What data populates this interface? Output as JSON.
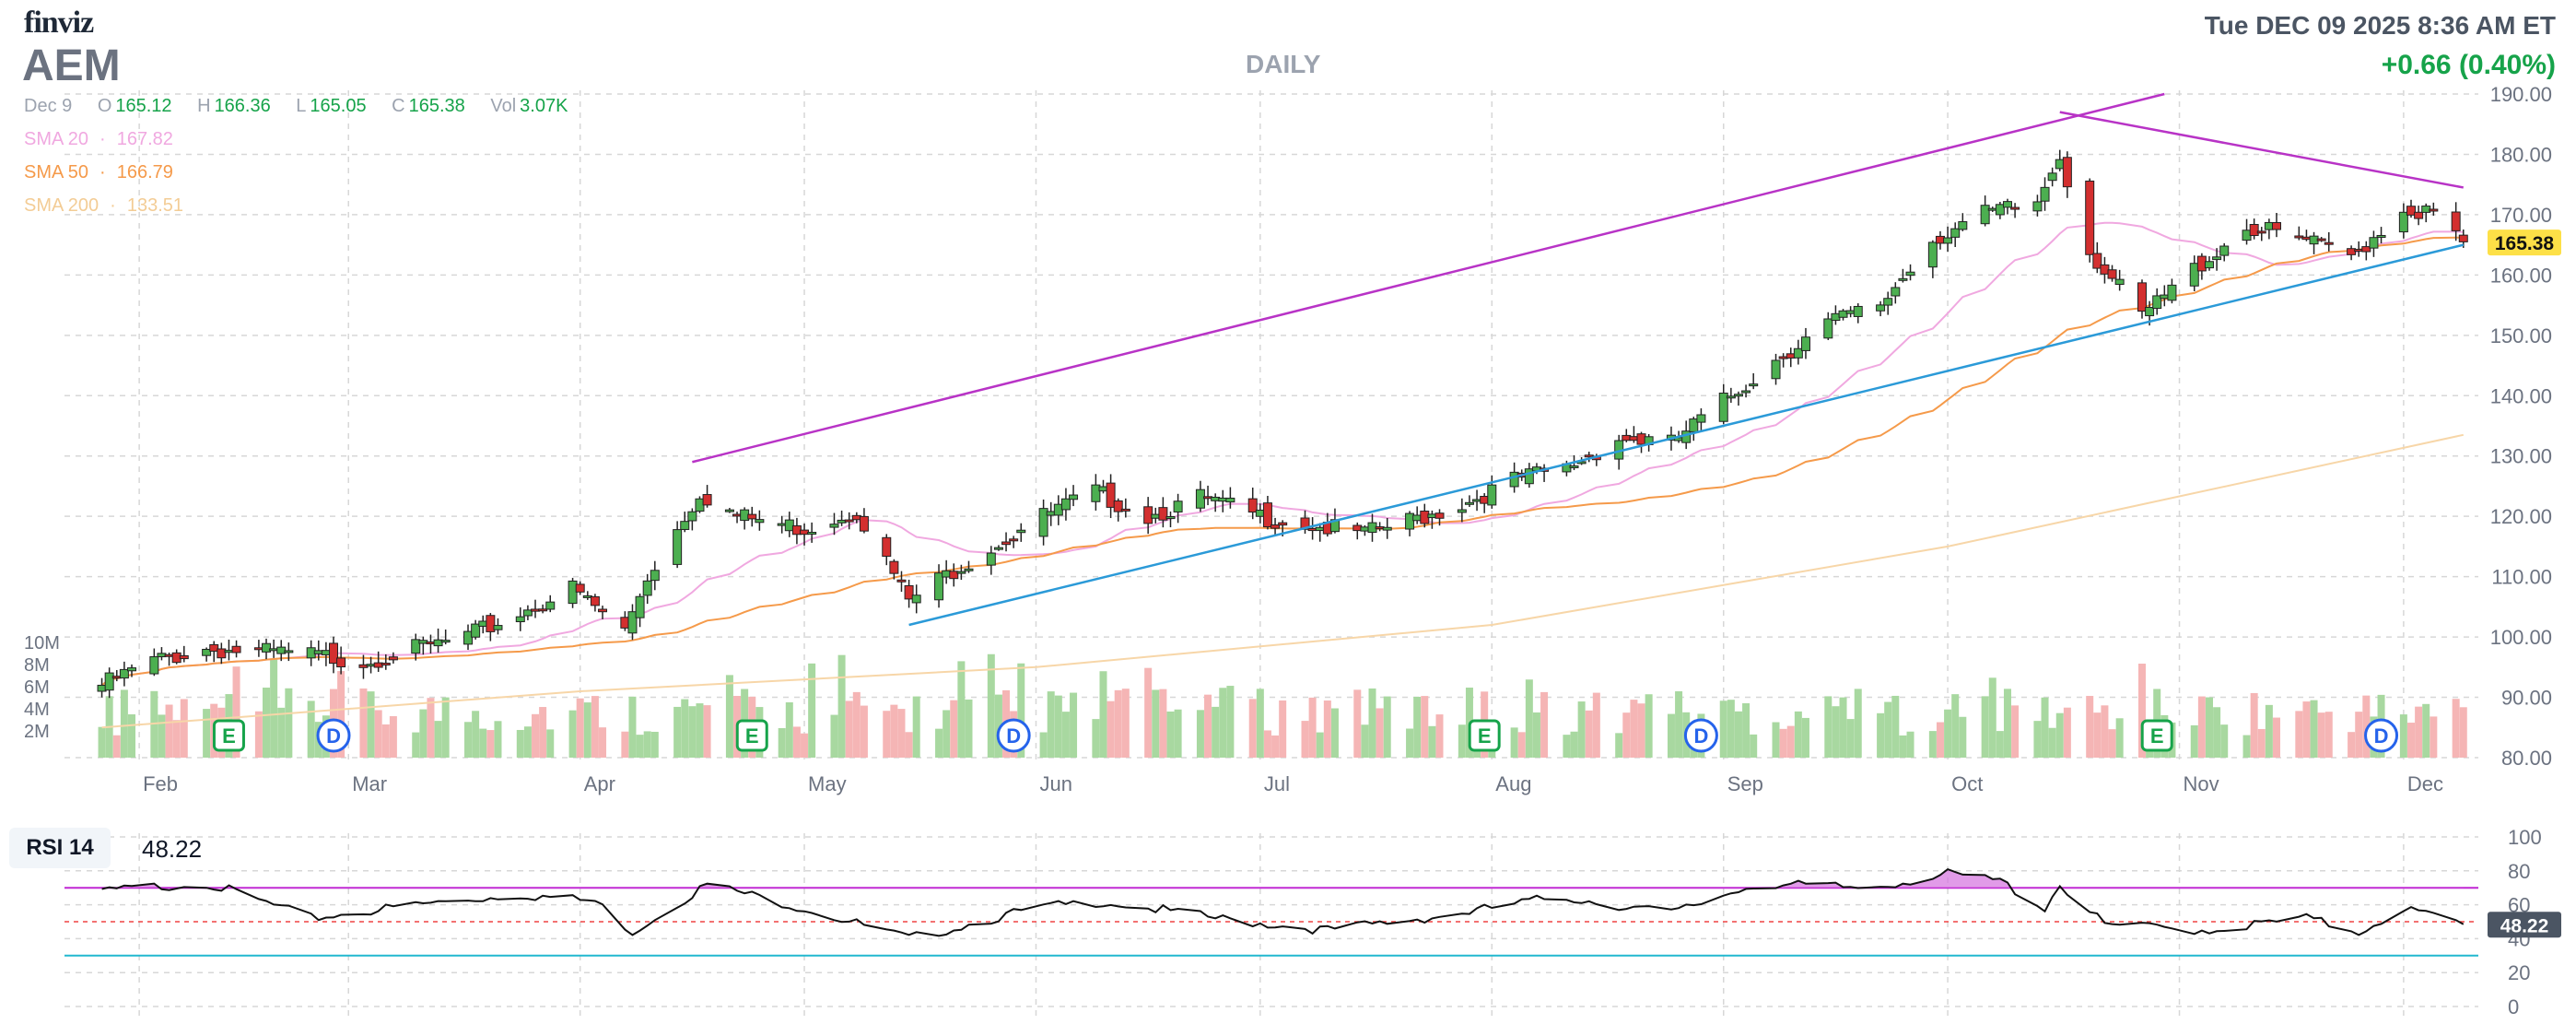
{
  "header": {
    "logo": "finviz",
    "ticker": "AEM",
    "period": "DAILY",
    "datetime": "Tue DEC 09 2025 8:36 AM ET",
    "change": "+0.66 (0.40%)"
  },
  "ohlc": {
    "date": "Dec 9",
    "open_label": "O",
    "open": "165.12",
    "high_label": "H",
    "high": "166.36",
    "low_label": "L",
    "low": "165.05",
    "close_label": "C",
    "close": "165.38",
    "vol_label": "Vol",
    "vol": "3.07K"
  },
  "indicators": {
    "sma20": {
      "label": "SMA 20",
      "value": "167.82",
      "color": "#f0a8e0"
    },
    "sma50": {
      "label": "SMA 50",
      "value": "166.79",
      "color": "#f59a4a"
    },
    "sma200": {
      "label": "SMA 200",
      "value": "133.51",
      "color": "#f7d6a8"
    },
    "rsi": {
      "label": "RSI 14",
      "value": "48.22"
    }
  },
  "chart_data": [
    {
      "type": "candlestick",
      "x_tick_labels": [
        "Feb",
        "Mar",
        "Apr",
        "May",
        "Jun",
        "Jul",
        "Aug",
        "Sep",
        "Oct",
        "Nov",
        "Dec"
      ],
      "y_tick_labels": [
        "80.00",
        "90.00",
        "100.00",
        "110.00",
        "120.00",
        "130.00",
        "140.00",
        "150.00",
        "160.00",
        "170.00",
        "180.00",
        "190.00"
      ],
      "ylim": [
        80,
        190
      ],
      "last_price": "165.38",
      "colors": {
        "up": "#4caf50",
        "down": "#d32f2f",
        "vol_up": "#a8d8a0",
        "vol_down": "#f5b5b5",
        "trend_upper": "#b833c6",
        "trend_lower": "#2b9ad8",
        "grid": "#d7d7d7"
      },
      "volume_tick_labels": [
        "2M",
        "4M",
        "6M",
        "8M",
        "10M"
      ],
      "events": [
        {
          "type": "E",
          "date": "2025-02-13"
        },
        {
          "type": "D",
          "date": "2025-02-27"
        },
        {
          "type": "E",
          "date": "2025-04-24"
        },
        {
          "type": "D",
          "date": "2025-05-29"
        },
        {
          "type": "E",
          "date": "2025-07-31"
        },
        {
          "type": "D",
          "date": "2025-08-29"
        },
        {
          "type": "E",
          "date": "2025-10-29"
        },
        {
          "type": "D",
          "date": "2025-11-28"
        }
      ],
      "trendlines": [
        {
          "name": "upper channel",
          "points": [
            [
              "2025-04-16",
              129
            ],
            [
              "2025-10-30",
              190
            ]
          ]
        },
        {
          "name": "lower channel",
          "points": [
            [
              "2025-05-15",
              102
            ],
            [
              "2025-12-09",
              165
            ]
          ]
        },
        {
          "name": "resistance",
          "points": [
            [
              "2025-10-16",
              187
            ],
            [
              "2025-12-09",
              174.5
            ]
          ]
        }
      ],
      "key_points": [
        {
          "date": "2025-01-27",
          "close": 92
        },
        {
          "date": "2025-02-03",
          "close": 96
        },
        {
          "date": "2025-02-10",
          "close": 98
        },
        {
          "date": "2025-02-24",
          "close": 97
        },
        {
          "date": "2025-03-03",
          "close": 96
        },
        {
          "date": "2025-03-17",
          "close": 100
        },
        {
          "date": "2025-03-31",
          "close": 108
        },
        {
          "date": "2025-04-07",
          "close": 101
        },
        {
          "date": "2025-04-10",
          "close": 110
        },
        {
          "date": "2025-04-17",
          "close": 124
        },
        {
          "date": "2025-04-22",
          "close": 120
        },
        {
          "date": "2025-05-01",
          "close": 118
        },
        {
          "date": "2025-05-08",
          "close": 121
        },
        {
          "date": "2025-05-15",
          "close": 106
        },
        {
          "date": "2025-05-22",
          "close": 112
        },
        {
          "date": "2025-06-02",
          "close": 120
        },
        {
          "date": "2025-06-09",
          "close": 124
        },
        {
          "date": "2025-06-16",
          "close": 120
        },
        {
          "date": "2025-06-23",
          "close": 123
        },
        {
          "date": "2025-07-01",
          "close": 120
        },
        {
          "date": "2025-07-15",
          "close": 117
        },
        {
          "date": "2025-07-28",
          "close": 122
        },
        {
          "date": "2025-08-04",
          "close": 126
        },
        {
          "date": "2025-08-11",
          "close": 128
        },
        {
          "date": "2025-08-18",
          "close": 133
        },
        {
          "date": "2025-08-25",
          "close": 132
        },
        {
          "date": "2025-09-01",
          "close": 139
        },
        {
          "date": "2025-09-08",
          "close": 146
        },
        {
          "date": "2025-09-15",
          "close": 152
        },
        {
          "date": "2025-09-22",
          "close": 155
        },
        {
          "date": "2025-09-29",
          "close": 166
        },
        {
          "date": "2025-10-06",
          "close": 170
        },
        {
          "date": "2025-10-13",
          "close": 172
        },
        {
          "date": "2025-10-16",
          "close": 180
        },
        {
          "date": "2025-10-20",
          "close": 164
        },
        {
          "date": "2025-10-27",
          "close": 153
        },
        {
          "date": "2025-11-03",
          "close": 161
        },
        {
          "date": "2025-11-10",
          "close": 168
        },
        {
          "date": "2025-11-17",
          "close": 166
        },
        {
          "date": "2025-11-24",
          "close": 163
        },
        {
          "date": "2025-12-01",
          "close": 171
        },
        {
          "date": "2025-12-05",
          "close": 170
        },
        {
          "date": "2025-12-09",
          "close": 165.38
        }
      ],
      "sma200_points": [
        {
          "date": "2025-01-27",
          "value": 85
        },
        {
          "date": "2025-04-01",
          "value": 91
        },
        {
          "date": "2025-06-01",
          "value": 95
        },
        {
          "date": "2025-08-01",
          "value": 102
        },
        {
          "date": "2025-10-01",
          "value": 115
        },
        {
          "date": "2025-12-09",
          "value": 133.5
        }
      ]
    },
    {
      "type": "line",
      "name": "RSI 14",
      "y_tick_labels": [
        "0",
        "20",
        "40",
        "60",
        "80",
        "100"
      ],
      "ylim": [
        0,
        100
      ],
      "overbought": 70,
      "mid": 50,
      "oversold": 30,
      "last_value": "48.22",
      "key_points": [
        {
          "date": "2025-01-27",
          "value": 68
        },
        {
          "date": "2025-02-10",
          "value": 73
        },
        {
          "date": "2025-02-24",
          "value": 52
        },
        {
          "date": "2025-03-10",
          "value": 60
        },
        {
          "date": "2025-03-24",
          "value": 66
        },
        {
          "date": "2025-04-03",
          "value": 62
        },
        {
          "date": "2025-04-08",
          "value": 44
        },
        {
          "date": "2025-04-18",
          "value": 72
        },
        {
          "date": "2025-05-01",
          "value": 58
        },
        {
          "date": "2025-05-15",
          "value": 40
        },
        {
          "date": "2025-06-01",
          "value": 58
        },
        {
          "date": "2025-06-10",
          "value": 62
        },
        {
          "date": "2025-06-25",
          "value": 52
        },
        {
          "date": "2025-07-10",
          "value": 45
        },
        {
          "date": "2025-07-28",
          "value": 55
        },
        {
          "date": "2025-08-10",
          "value": 65
        },
        {
          "date": "2025-08-25",
          "value": 55
        },
        {
          "date": "2025-09-05",
          "value": 72
        },
        {
          "date": "2025-09-20",
          "value": 70
        },
        {
          "date": "2025-10-01",
          "value": 78
        },
        {
          "date": "2025-10-08",
          "value": 74
        },
        {
          "date": "2025-10-14",
          "value": 58
        },
        {
          "date": "2025-10-16",
          "value": 72
        },
        {
          "date": "2025-10-22",
          "value": 48
        },
        {
          "date": "2025-11-05",
          "value": 45
        },
        {
          "date": "2025-11-18",
          "value": 52
        },
        {
          "date": "2025-11-25",
          "value": 44
        },
        {
          "date": "2025-12-01",
          "value": 58
        },
        {
          "date": "2025-12-09",
          "value": 48.22
        }
      ]
    }
  ]
}
